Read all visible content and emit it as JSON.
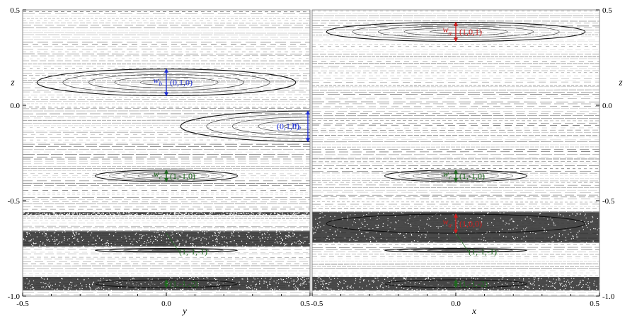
{
  "chart_data": [
    {
      "type": "scatter",
      "panel": "left",
      "xlabel": "y",
      "ylabel": "z",
      "xlim": [
        -0.5,
        0.5
      ],
      "ylim": [
        -1.0,
        0.5
      ],
      "x_ticks": [
        "-0.5",
        "0.0",
        "0.5"
      ],
      "y_ticks": [
        "0.5",
        "0.0",
        "-0.5",
        "-1.0"
      ],
      "y_axis_side": "left",
      "resonances": [
        {
          "label": "(0,1,0)",
          "width_label": "w",
          "width_sub": "b",
          "x": 0.0,
          "z": 0.12,
          "halfwidth": 0.07,
          "color": "#1f2fd6",
          "label_side": "right",
          "w_side": "left"
        },
        {
          "label": "(0,1,0)",
          "width_label": "w",
          "width_sub": "b",
          "x": 0.5,
          "z": -0.11,
          "halfwidth": 0.08,
          "color": "#1f2fd6",
          "label_side": "left",
          "w_side": "right"
        },
        {
          "label": "(1,-1,0)",
          "width_label": "w",
          "width_sub": "c",
          "x": 0.0,
          "z": -0.37,
          "halfwidth": 0.03,
          "color": "#1e6b1e",
          "label_side": "right",
          "w_side": "left"
        },
        {
          "label": "(1,-1,-1)",
          "width_label": "",
          "width_sub": "",
          "x": 0.0,
          "z": -0.76,
          "halfwidth": 0.0,
          "color": "#1e6b1e",
          "label_side": "right",
          "w_side": "left"
        },
        {
          "label": "(1,-1,-2)",
          "width_label": "",
          "width_sub": "",
          "x": 0.0,
          "z": -0.935,
          "halfwidth": 0.02,
          "color": "#1e6b1e",
          "label_side": "right",
          "w_side": "left"
        }
      ],
      "chaotic_bands": [
        [
          -0.74,
          -0.66
        ],
        [
          -0.575,
          -0.56
        ],
        [
          -0.97,
          -0.9
        ]
      ]
    },
    {
      "type": "scatter",
      "panel": "right",
      "xlabel": "x",
      "ylabel": "z",
      "xlim": [
        -0.5,
        0.5
      ],
      "ylim": [
        -1.0,
        0.5
      ],
      "x_ticks": [
        "-0.5",
        "0.0",
        "0.5"
      ],
      "y_ticks": [
        "0.5",
        "0.0",
        "-0.5",
        "-1.0"
      ],
      "y_axis_side": "right",
      "resonances": [
        {
          "label": "(1,0,1)",
          "width_label": "w",
          "width_sub": "a",
          "x": 0.0,
          "z": 0.385,
          "halfwidth": 0.05,
          "color": "#d41f1f",
          "label_side": "right",
          "w_side": "left"
        },
        {
          "label": "(1,-1,0)",
          "width_label": "w",
          "width_sub": "c",
          "x": 0.0,
          "z": -0.37,
          "halfwidth": 0.03,
          "color": "#1e6b1e",
          "label_side": "right",
          "w_side": "left"
        },
        {
          "label": "(1,0,0)",
          "width_label": "w",
          "width_sub": "a",
          "x": 0.0,
          "z": -0.62,
          "halfwidth": 0.05,
          "color": "#d41f1f",
          "label_side": "right",
          "w_side": "left"
        },
        {
          "label": "(1,-1,-1)",
          "width_label": "",
          "width_sub": "",
          "x": 0.0,
          "z": -0.76,
          "halfwidth": 0.0,
          "color": "#1e6b1e",
          "label_side": "right",
          "w_side": "left"
        },
        {
          "label": "(1,-1,-2)",
          "width_label": "",
          "width_sub": "",
          "x": 0.0,
          "z": -0.935,
          "halfwidth": 0.02,
          "color": "#1e6b1e",
          "label_side": "right",
          "w_side": "left"
        }
      ],
      "chaotic_bands": [
        [
          -0.72,
          -0.56
        ],
        [
          -0.97,
          -0.9
        ]
      ]
    }
  ]
}
